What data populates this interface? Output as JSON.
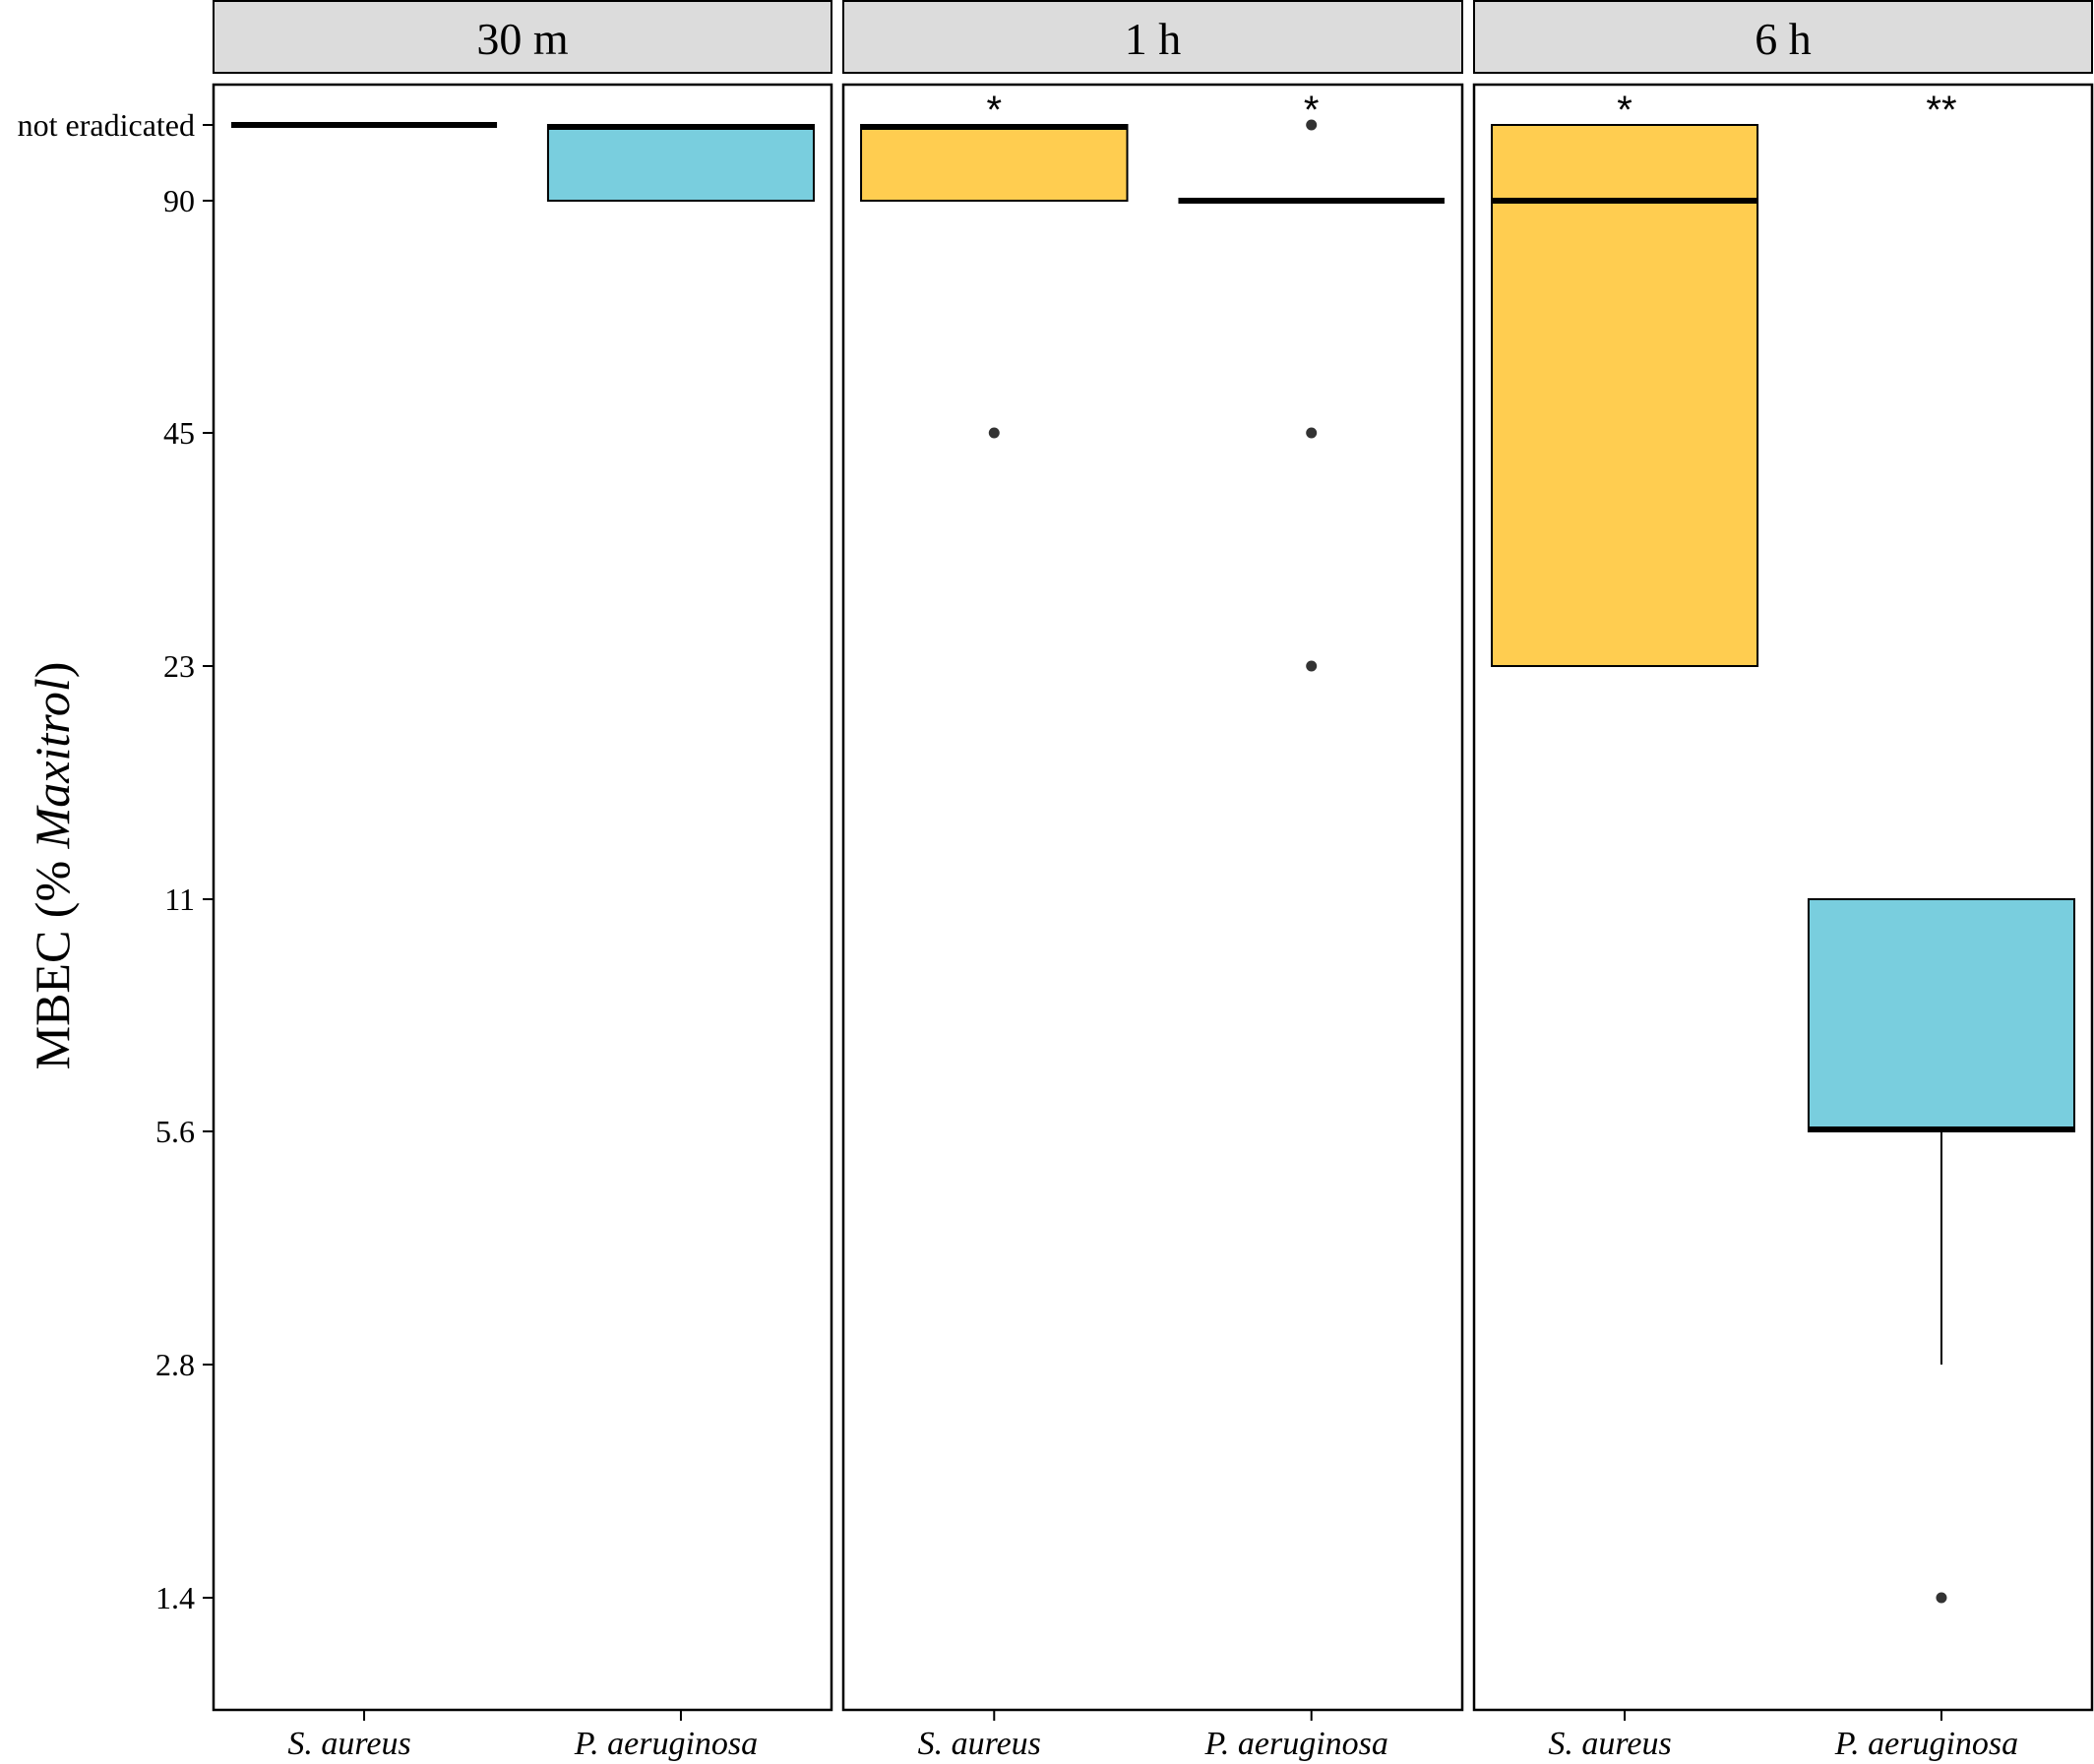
{
  "chart_data": {
    "type": "boxplot",
    "ylabel_prefix": "MBEC (% ",
    "ylabel_italic": "Maxitrol",
    "ylabel_suffix": ")",
    "y_scale": "log2",
    "y_ticks": [
      "1.4",
      "2.8",
      "5.6",
      "11",
      "23",
      "45",
      "90",
      "not eradicated"
    ],
    "categories": [
      "S. aureus",
      "P. aeruginosa"
    ],
    "colors": {
      "S. aureus": "#ffcd50",
      "P. aeruginosa": "#79cede"
    },
    "panels": [
      {
        "label": "30 m",
        "boxes": [
          {
            "category": "S. aureus",
            "lower": "not eradicated",
            "q1": "not eradicated",
            "median": "not eradicated",
            "q3": "not eradicated",
            "upper": "not eradicated",
            "outliers": [],
            "annotation": ""
          },
          {
            "category": "P. aeruginosa",
            "lower": "90",
            "q1": "90",
            "median": "not eradicated",
            "q3": "not eradicated",
            "upper": "not eradicated",
            "outliers": [],
            "annotation": ""
          }
        ]
      },
      {
        "label": "1 h",
        "boxes": [
          {
            "category": "S. aureus",
            "lower": "90",
            "q1": "90",
            "median": "not eradicated",
            "q3": "not eradicated",
            "upper": "not eradicated",
            "outliers": [
              "45"
            ],
            "annotation": "*"
          },
          {
            "category": "P. aeruginosa",
            "lower": "90",
            "q1": "90",
            "median": "90",
            "q3": "90",
            "upper": "90",
            "outliers": [
              "not eradicated",
              "45",
              "23"
            ],
            "annotation": "*"
          }
        ]
      },
      {
        "label": "6 h",
        "boxes": [
          {
            "category": "S. aureus",
            "lower": "23",
            "q1": "23",
            "median": "90",
            "q3": "not eradicated",
            "upper": "not eradicated",
            "outliers": [],
            "annotation": "*"
          },
          {
            "category": "P. aeruginosa",
            "lower": "2.8",
            "q1": "5.6",
            "median": "5.6",
            "q3": "11",
            "upper": "11",
            "outliers": [
              "1.4"
            ],
            "annotation": "**"
          }
        ]
      }
    ]
  }
}
